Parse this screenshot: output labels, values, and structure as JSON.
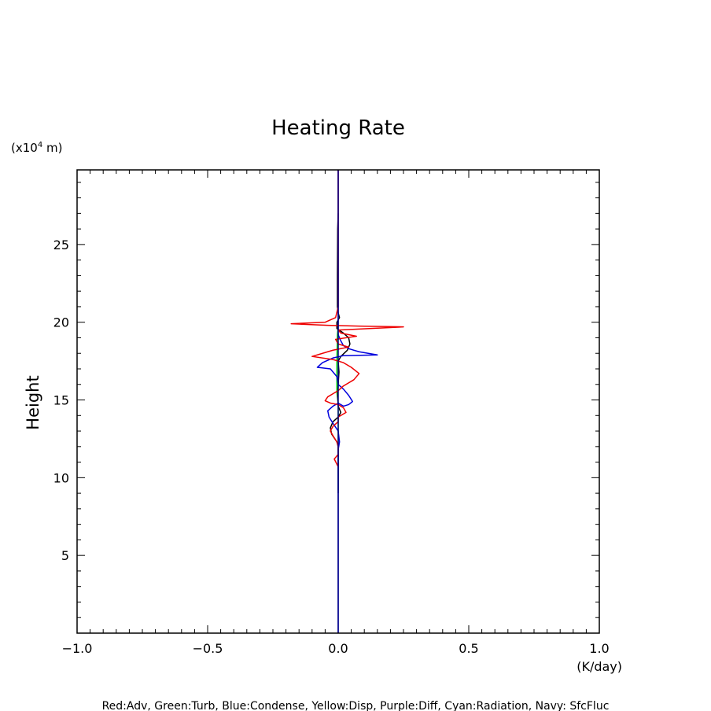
{
  "chart_data": {
    "type": "line",
    "title": "Heating Rate",
    "xlabel": "(K/day)",
    "ylabel": "Height",
    "y_units": "(x10",
    "y_units_exp": "4",
    "y_units_tail": " m)",
    "xlim": [
      -1.0,
      1.0
    ],
    "ylim": [
      0,
      29.8
    ],
    "x_ticks": [
      -1.0,
      -0.5,
      0.0,
      0.5,
      1.0
    ],
    "x_tick_labels": [
      "−1.0",
      "−0.5",
      "0.0",
      "0.5",
      "1.0"
    ],
    "y_ticks": [
      5,
      10,
      15,
      20,
      25
    ],
    "y_tick_labels": [
      "5",
      "10",
      "15",
      "20",
      "25"
    ],
    "legend_text": "Red:Adv, Green:Turb, Blue:Condense, Yellow:Disp, Purple:Diff, Cyan:Radiation, Navy: SfcFluc",
    "grid": false,
    "series": [
      {
        "name": "Green:Turb",
        "color": "#00dd00",
        "points": [
          [
            0.0,
            9.2
          ],
          [
            0.0,
            14.8
          ],
          [
            -0.005,
            15.5
          ],
          [
            -0.005,
            17.5
          ],
          [
            -0.003,
            19.2
          ],
          [
            0.0,
            19.8
          ]
        ]
      },
      {
        "name": "Black",
        "color": "#000000",
        "points": [
          [
            0.0,
            9.0
          ],
          [
            0.0,
            11.0
          ],
          [
            0.0,
            12.0
          ],
          [
            -0.005,
            12.3
          ],
          [
            -0.025,
            12.8
          ],
          [
            -0.03,
            13.2
          ],
          [
            -0.02,
            13.6
          ],
          [
            0.0,
            13.9
          ],
          [
            0.01,
            14.2
          ],
          [
            0.0,
            14.6
          ],
          [
            -0.002,
            15.2
          ],
          [
            0.0,
            16.0
          ],
          [
            0.003,
            16.8
          ],
          [
            0.0,
            17.5
          ],
          [
            0.01,
            17.8
          ],
          [
            0.035,
            18.2
          ],
          [
            0.045,
            18.6
          ],
          [
            0.04,
            19.0
          ],
          [
            0.02,
            19.3
          ],
          [
            -0.005,
            19.6
          ],
          [
            -0.005,
            20.0
          ],
          [
            0.005,
            20.3
          ],
          [
            0.0,
            20.6
          ],
          [
            -0.003,
            21.0
          ],
          [
            -0.003,
            23.0
          ],
          [
            -0.002,
            26.0
          ],
          [
            0.0,
            27.0
          ]
        ]
      },
      {
        "name": "Blue:Condense",
        "color": "#0000dd",
        "points": [
          [
            0.0,
            0.0
          ],
          [
            0.0,
            11.8
          ],
          [
            0.005,
            12.3
          ],
          [
            0.0,
            13.0
          ],
          [
            -0.02,
            13.5
          ],
          [
            -0.035,
            13.9
          ],
          [
            -0.04,
            14.3
          ],
          [
            -0.02,
            14.6
          ],
          [
            0.0,
            14.8
          ],
          [
            0.02,
            14.6
          ],
          [
            0.04,
            14.7
          ],
          [
            0.055,
            14.9
          ],
          [
            0.04,
            15.3
          ],
          [
            0.02,
            15.7
          ],
          [
            0.0,
            16.0
          ],
          [
            -0.005,
            16.5
          ],
          [
            -0.03,
            17.0
          ],
          [
            -0.08,
            17.1
          ],
          [
            -0.06,
            17.4
          ],
          [
            -0.02,
            17.7
          ],
          [
            0.02,
            17.85
          ],
          [
            0.15,
            17.9
          ],
          [
            0.08,
            18.1
          ],
          [
            0.04,
            18.3
          ],
          [
            0.02,
            18.5
          ],
          [
            0.01,
            18.8
          ],
          [
            0.0,
            19.2
          ],
          [
            0.0,
            29.8
          ]
        ]
      },
      {
        "name": "Red:Adv",
        "color": "#ee0000",
        "points": [
          [
            0.0,
            10.7
          ],
          [
            -0.015,
            11.2
          ],
          [
            0.0,
            11.5
          ],
          [
            0.0,
            12.0
          ],
          [
            -0.005,
            12.3
          ],
          [
            -0.02,
            12.7
          ],
          [
            -0.03,
            13.0
          ],
          [
            -0.02,
            13.3
          ],
          [
            0.0,
            13.6
          ],
          [
            0.0,
            13.9
          ],
          [
            0.03,
            14.2
          ],
          [
            0.02,
            14.5
          ],
          [
            0.0,
            14.7
          ],
          [
            -0.03,
            14.8
          ],
          [
            -0.05,
            14.95
          ],
          [
            -0.04,
            15.2
          ],
          [
            -0.02,
            15.4
          ],
          [
            0.0,
            15.6
          ],
          [
            0.02,
            15.9
          ],
          [
            0.06,
            16.3
          ],
          [
            0.08,
            16.7
          ],
          [
            0.05,
            17.1
          ],
          [
            0.02,
            17.4
          ],
          [
            -0.02,
            17.6
          ],
          [
            -0.1,
            17.8
          ],
          [
            -0.06,
            18.0
          ],
          [
            -0.02,
            18.2
          ],
          [
            0.04,
            18.4
          ],
          [
            0.0,
            18.6
          ],
          [
            -0.01,
            18.9
          ],
          [
            0.07,
            19.1
          ],
          [
            0.01,
            19.3
          ],
          [
            0.0,
            19.5
          ],
          [
            0.25,
            19.7
          ],
          [
            0.08,
            19.75
          ],
          [
            -0.04,
            19.8
          ],
          [
            -0.18,
            19.9
          ],
          [
            -0.05,
            20.0
          ],
          [
            -0.01,
            20.3
          ],
          [
            0.0,
            21.0
          ],
          [
            0.0,
            29.8
          ]
        ]
      },
      {
        "name": "Navy: SfcFluc",
        "color": "#000080",
        "points": [
          [
            0.0,
            0.0
          ],
          [
            0.0,
            29.8
          ]
        ]
      }
    ]
  }
}
